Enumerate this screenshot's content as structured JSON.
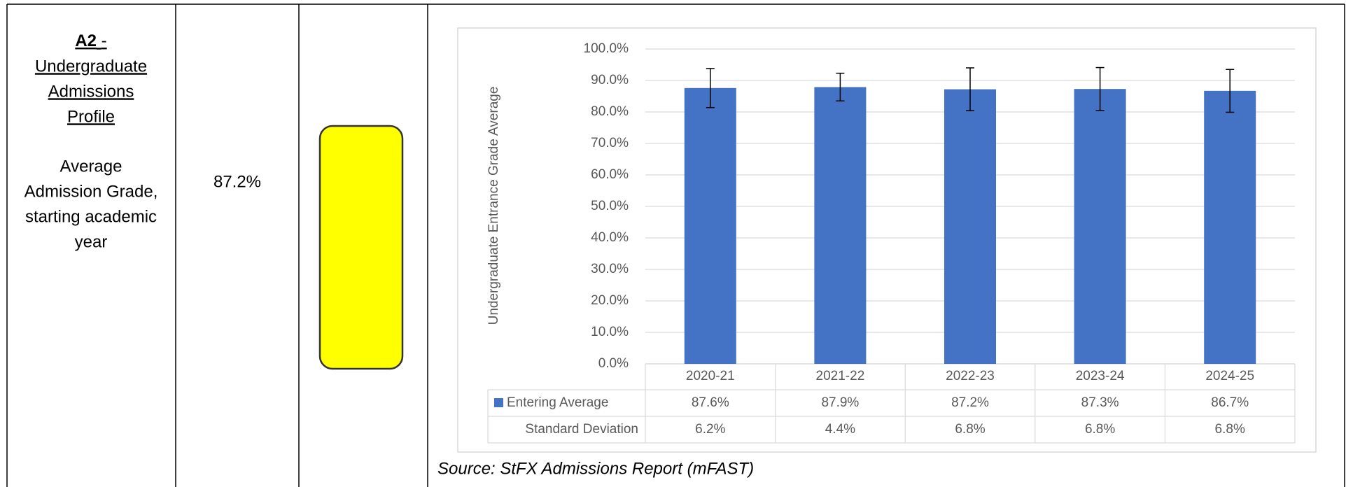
{
  "indicator": {
    "code": "A2",
    "code_separator": "-",
    "heading_lines": [
      "Undergraduate",
      "Admissions",
      "Profile"
    ],
    "description_lines": [
      "Average",
      "Admission Grade,",
      "starting academic",
      "year"
    ],
    "value": "87.2%",
    "status_color": "#ffff00"
  },
  "chart_data": {
    "type": "bar",
    "y_label": "Undergraduate Entrance Grade Average",
    "categories": [
      "2020-21",
      "2021-22",
      "2022-23",
      "2023-24",
      "2024-25"
    ],
    "series": [
      {
        "name": "Entering Average",
        "color": "#4472c4",
        "values": [
          87.6,
          87.9,
          87.2,
          87.3,
          86.7
        ],
        "value_labels": [
          "87.6%",
          "87.9%",
          "87.2%",
          "87.3%",
          "86.7%"
        ]
      }
    ],
    "errors": {
      "name": "Standard Deviation",
      "values": [
        6.2,
        4.4,
        6.8,
        6.8,
        6.8
      ],
      "value_labels": [
        "6.2%",
        "4.4%",
        "6.8%",
        "6.8%",
        "6.8%"
      ]
    },
    "ylim": [
      0,
      100
    ],
    "yticks": [
      {
        "value": 0,
        "label": "0.0%"
      },
      {
        "value": 10,
        "label": "10.0%"
      },
      {
        "value": 20,
        "label": "20.0%"
      },
      {
        "value": 30,
        "label": "30.0%"
      },
      {
        "value": 40,
        "label": "40.0%"
      },
      {
        "value": 50,
        "label": "50.0%"
      },
      {
        "value": 60,
        "label": "60.0%"
      },
      {
        "value": 70,
        "label": "70.0%"
      },
      {
        "value": 80,
        "label": "80.0%"
      },
      {
        "value": 90,
        "label": "90.0%"
      },
      {
        "value": 100,
        "label": "100.0%"
      }
    ],
    "grid": true
  },
  "source": "Source: StFX Admissions Report (mFAST)"
}
